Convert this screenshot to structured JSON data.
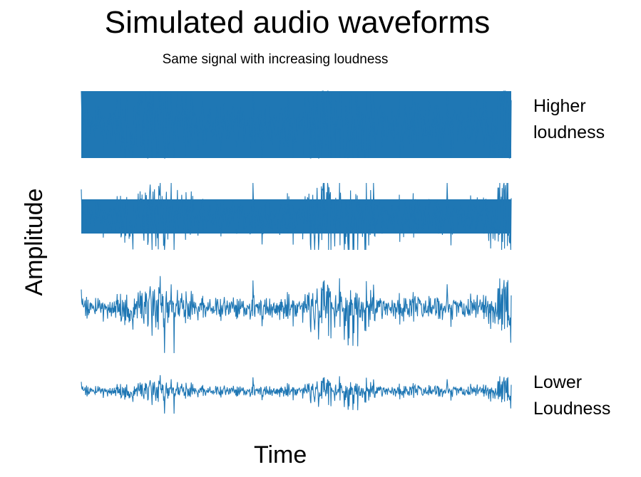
{
  "chart_data": {
    "type": "line",
    "title": "Simulated audio waveforms",
    "subtitle": "Same signal with increasing loudness",
    "xlabel": "Time",
    "ylabel": "Amplitude",
    "xaxis_visible": false,
    "yaxis_visible": false,
    "grid": false,
    "legend": "none",
    "color": "#1f77b4",
    "stacking": "vertical, one waveform per row",
    "series": [
      {
        "order": 1,
        "relative_loudness": 1.0,
        "clipped": true
      },
      {
        "order": 2,
        "relative_loudness": 0.75,
        "clipped": true
      },
      {
        "order": 3,
        "relative_loudness": 0.5,
        "clipped": false
      },
      {
        "order": 4,
        "relative_loudness": 0.25,
        "clipped": false
      }
    ],
    "annotations": {
      "top": [
        "Higher",
        "loudness"
      ],
      "bottom": [
        "Lower",
        "Loudness"
      ]
    }
  }
}
